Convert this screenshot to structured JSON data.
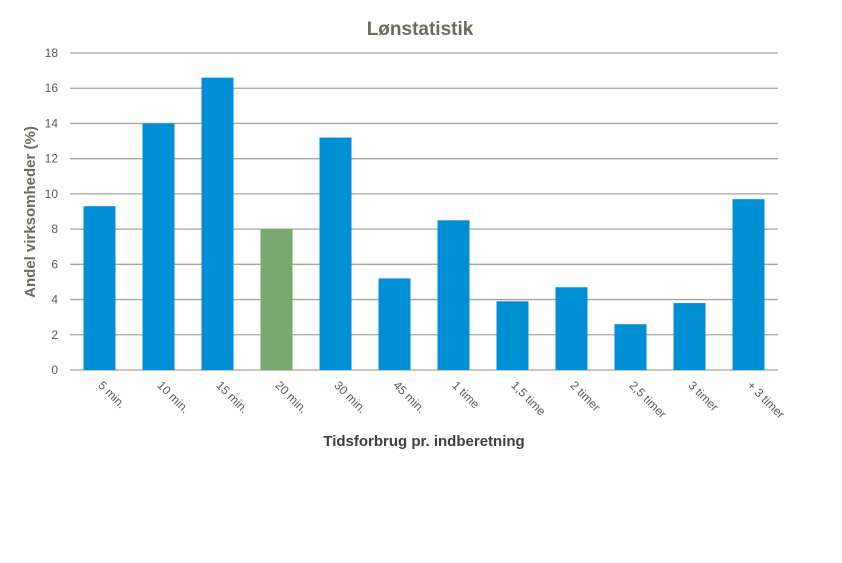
{
  "chart_data": {
    "type": "bar",
    "title": "Lønstatistik",
    "xlabel": "Tidsforbrug pr. indberetning",
    "ylabel": "Andel virksomheder  (%)",
    "categories": [
      "5 min.",
      "10 min.",
      "15 min.",
      "20 min.",
      "30 min.",
      "45 min.",
      "1 time",
      "1,5 time",
      "2 timer",
      "2,5 timer",
      "3 timer",
      "+ 3 timer"
    ],
    "values": [
      9.3,
      14.0,
      16.6,
      8.0,
      13.2,
      5.2,
      8.5,
      3.9,
      4.7,
      2.6,
      3.8,
      9.7
    ],
    "ylim": [
      0,
      18
    ],
    "yticks": [
      0,
      2,
      4,
      6,
      8,
      10,
      12,
      14,
      16,
      18
    ],
    "grid": true,
    "legend": "none",
    "colors": {
      "default": "#008FD5",
      "highlight": "#78AA6E",
      "highlight_category": "20 min.",
      "grid": "#A6A59A",
      "text": "#595959",
      "title": "#6B6B5E"
    }
  }
}
